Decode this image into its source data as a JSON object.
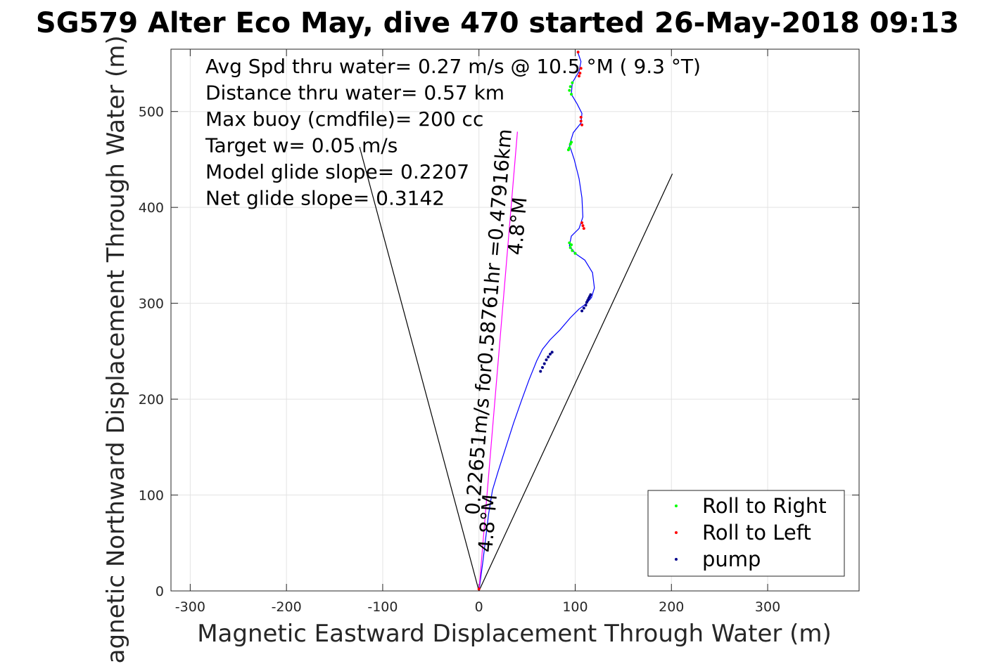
{
  "chart_data": {
    "type": "scatter",
    "title": "SG579 Alter Eco May, dive 470 started 26-May-2018 09:13",
    "xlabel": "Magnetic Eastward Displacement Through Water (m)",
    "ylabel": "Magnetic Northward Displacement Through Water (m)",
    "xlim": [
      -320,
      395
    ],
    "ylim": [
      0,
      565
    ],
    "xticks": [
      -300,
      -200,
      -100,
      0,
      100,
      200,
      300
    ],
    "yticks": [
      0,
      100,
      200,
      300,
      400,
      500
    ],
    "grid": true,
    "legend_position": "bottom-right",
    "annotations": [
      "Avg Spd thru water=  0.27 m/s @  10.5 °M (  9.3 °T)",
      "Distance thru water=  0.57 km",
      "Max buoy (cmdfile)= 200 cc",
      "Target w= 0.05 m/s",
      "Model glide slope= 0.2207",
      "Net glide slope= 0.3142"
    ],
    "heading_labels": [
      {
        "text": "0.22651m/s for0.58761hr =0.47916km",
        "x": 17,
        "y": 280,
        "angle": -85.2
      },
      {
        "text": "4.8°M",
        "x": 47,
        "y": 380,
        "angle": -85.2
      },
      {
        "text": "4.8°M",
        "x": 16,
        "y": 70,
        "angle": -85.2
      }
    ],
    "series": [
      {
        "name": "",
        "kind": "line",
        "color": "#0000ff",
        "points": [
          [
            0,
            0
          ],
          [
            4,
            30
          ],
          [
            7,
            55
          ],
          [
            10,
            80
          ],
          [
            14,
            105
          ],
          [
            20,
            125
          ],
          [
            28,
            150
          ],
          [
            36,
            175
          ],
          [
            44,
            198
          ],
          [
            52,
            220
          ],
          [
            60,
            240
          ],
          [
            66,
            252
          ],
          [
            74,
            262
          ],
          [
            84,
            272
          ],
          [
            95,
            285
          ],
          [
            104,
            294
          ],
          [
            112,
            300
          ],
          [
            117,
            306
          ],
          [
            120,
            316
          ],
          [
            118,
            332
          ],
          [
            110,
            345
          ],
          [
            100,
            352
          ],
          [
            94,
            360
          ],
          [
            96,
            370
          ],
          [
            104,
            378
          ],
          [
            108,
            390
          ],
          [
            107,
            410
          ],
          [
            104,
            430
          ],
          [
            99,
            450
          ],
          [
            94,
            465
          ],
          [
            98,
            478
          ],
          [
            106,
            488
          ],
          [
            107,
            498
          ],
          [
            102,
            508
          ],
          [
            96,
            518
          ],
          [
            97,
            530
          ],
          [
            104,
            542
          ],
          [
            106,
            552
          ],
          [
            103,
            561
          ]
        ]
      },
      {
        "name": "",
        "kind": "line",
        "color": "#ff00ff",
        "points": [
          [
            0,
            0
          ],
          [
            40,
            479
          ]
        ]
      },
      {
        "name": "",
        "kind": "line",
        "color": "#000000",
        "points": [
          [
            0,
            0
          ],
          [
            -124,
            463
          ]
        ]
      },
      {
        "name": "",
        "kind": "line",
        "color": "#000000",
        "points": [
          [
            0,
            0
          ],
          [
            201,
            435
          ]
        ]
      },
      {
        "name": "Roll to Right",
        "kind": "points",
        "color": "#00ff00",
        "points": [
          [
            95,
            358
          ],
          [
            96,
            361
          ],
          [
            94,
            363
          ],
          [
            97,
            355
          ],
          [
            100,
            352
          ],
          [
            94,
            522
          ],
          [
            96,
            518
          ],
          [
            95,
            526
          ],
          [
            97,
            530
          ],
          [
            94,
            462
          ],
          [
            95,
            466
          ],
          [
            96,
            468
          ],
          [
            93,
            460
          ]
        ]
      },
      {
        "name": "Roll to Left",
        "kind": "points",
        "color": "#ff0000",
        "points": [
          [
            108,
            381
          ],
          [
            107,
            384
          ],
          [
            109,
            378
          ],
          [
            106,
            490
          ],
          [
            107,
            486
          ],
          [
            106,
            494
          ],
          [
            105,
            540
          ],
          [
            106,
            545
          ],
          [
            104,
            537
          ],
          [
            103,
            562
          ],
          [
            0,
            2
          ]
        ]
      },
      {
        "name": "pump",
        "kind": "points",
        "color": "#00008b",
        "points": [
          [
            64,
            229
          ],
          [
            66,
            233
          ],
          [
            68,
            237
          ],
          [
            70,
            241
          ],
          [
            72,
            244
          ],
          [
            74,
            247
          ],
          [
            76,
            249
          ],
          [
            107,
            292
          ],
          [
            109,
            295
          ],
          [
            111,
            298
          ],
          [
            112,
            301
          ],
          [
            113,
            303
          ],
          [
            114,
            305
          ],
          [
            115,
            307
          ],
          [
            116,
            309
          ]
        ]
      }
    ]
  }
}
